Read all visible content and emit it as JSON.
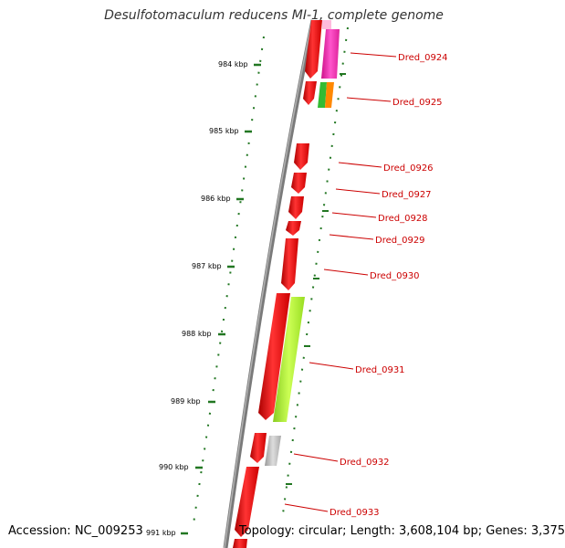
{
  "title": "Desulfotomaculum reducens MI-1, complete genome",
  "accession": "Accession: NC_009253",
  "topology": "Topology: circular; Length: 3,608,104 bp; Genes: 3,375",
  "colors": {
    "backbone": "#808080",
    "gene_red": "#ee0000",
    "gene_magenta": "#ee22aa",
    "gene_green": "#33bb33",
    "gene_orange": "#ff8800",
    "gene_lime": "#bbff33",
    "gene_gray": "#bbbbbb",
    "tick_green": "#227722",
    "label_red": "#cc0000"
  },
  "ticks": [
    {
      "label": "984 kbp"
    },
    {
      "label": "985 kbp"
    },
    {
      "label": "986 kbp"
    },
    {
      "label": "987 kbp"
    },
    {
      "label": "988 kbp"
    },
    {
      "label": "989 kbp"
    },
    {
      "label": "990 kbp"
    },
    {
      "label": "991 kbp"
    }
  ],
  "genes": [
    {
      "label": "Dred_0924"
    },
    {
      "label": "Dred_0925"
    },
    {
      "label": "Dred_0926"
    },
    {
      "label": "Dred_0927"
    },
    {
      "label": "Dred_0928"
    },
    {
      "label": "Dred_0929"
    },
    {
      "label": "Dred_0930"
    },
    {
      "label": "Dred_0931"
    },
    {
      "label": "Dred_0932"
    },
    {
      "label": "Dred_0933"
    }
  ]
}
